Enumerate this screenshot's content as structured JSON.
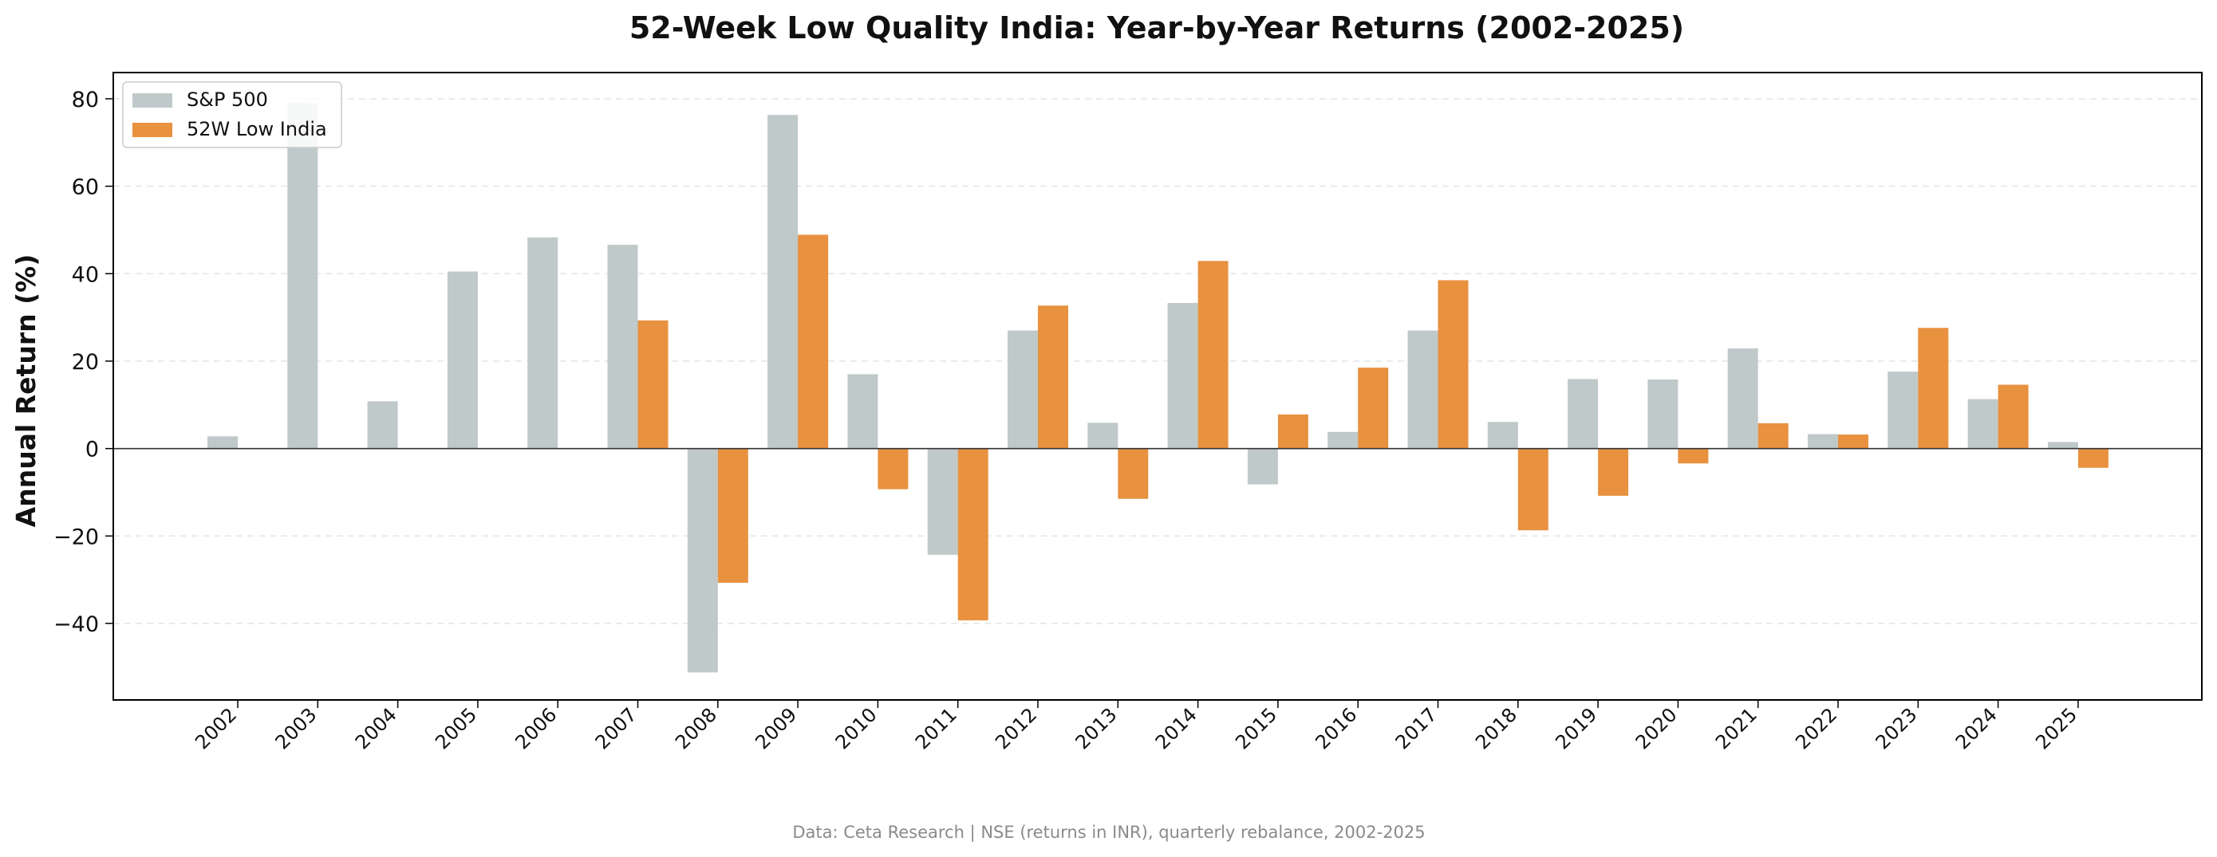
{
  "chart_data": {
    "type": "bar",
    "title": "52-Week Low Quality India: Year-by-Year Returns (2002-2025)",
    "xlabel": "",
    "ylabel": "Annual Return (%)",
    "source_note": "Data: Ceta Research | NSE (returns in INR), quarterly rebalance, 2002-2025",
    "categories": [
      "2002",
      "2003",
      "2004",
      "2005",
      "2006",
      "2007",
      "2008",
      "2009",
      "2010",
      "2011",
      "2012",
      "2013",
      "2014",
      "2015",
      "2016",
      "2017",
      "2018",
      "2019",
      "2020",
      "2021",
      "2022",
      "2023",
      "2024",
      "2025"
    ],
    "series": [
      {
        "name": "S&P 500",
        "color": "#bfc9c9",
        "values": [
          2.8,
          79.0,
          10.8,
          40.5,
          48.3,
          46.6,
          -51.2,
          76.3,
          17.0,
          -24.3,
          27.0,
          5.9,
          33.3,
          -8.2,
          3.8,
          27.0,
          6.1,
          15.9,
          15.8,
          22.9,
          3.3,
          17.6,
          11.3,
          1.5
        ]
      },
      {
        "name": "52W Low India",
        "color": "#e8913f",
        "values": [
          null,
          null,
          null,
          null,
          null,
          29.3,
          -30.7,
          48.9,
          -9.3,
          -39.3,
          32.7,
          -11.5,
          42.9,
          7.8,
          18.5,
          38.5,
          -18.7,
          -10.8,
          -3.4,
          5.8,
          3.2,
          27.6,
          14.6,
          -4.4
        ]
      }
    ],
    "y_ticks": [
      -40,
      -20,
      0,
      20,
      40,
      60,
      80
    ],
    "ylim": [
      -57.5,
      86
    ],
    "grid": "horizontal dashed",
    "legend_position": "top-left"
  }
}
